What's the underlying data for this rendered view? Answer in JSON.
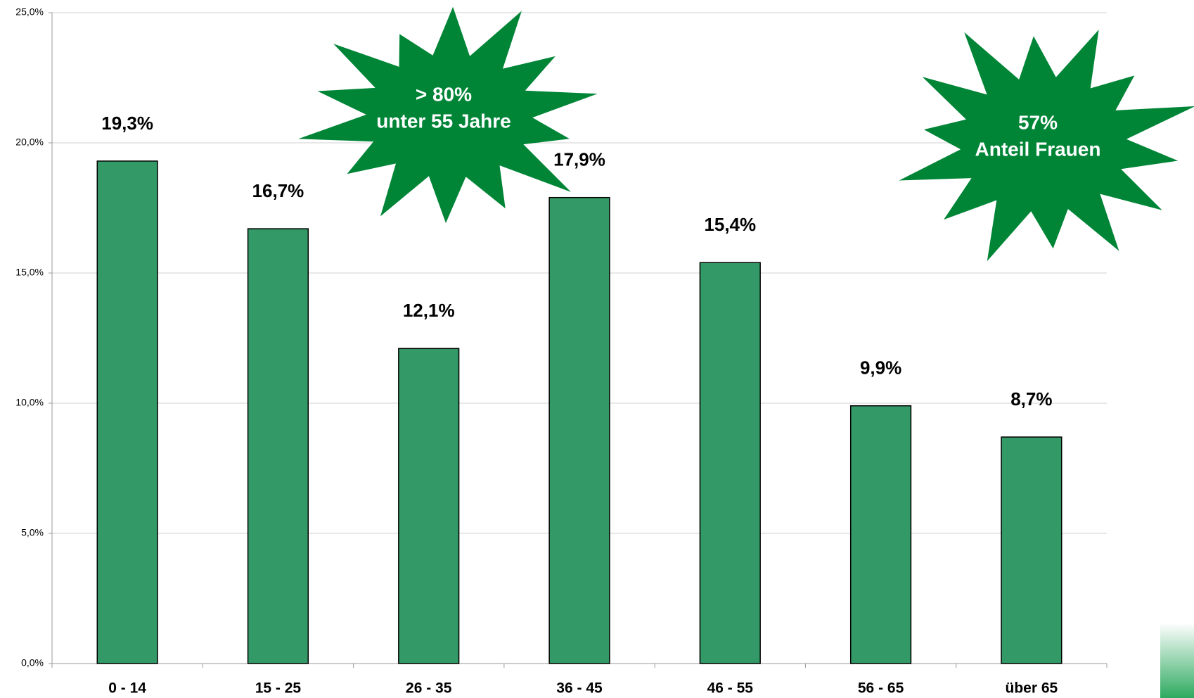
{
  "chart_data": {
    "type": "bar",
    "categories": [
      "0 - 14",
      "15 - 25",
      "26 - 35",
      "36 - 45",
      "46 - 55",
      "56 - 65",
      "über 65"
    ],
    "values": [
      19.3,
      16.7,
      12.1,
      17.9,
      15.4,
      9.9,
      8.7
    ],
    "value_labels": [
      "19,3%",
      "16,7%",
      "12,1%",
      "17,9%",
      "15,4%",
      "9,9%",
      "8,7%"
    ],
    "color": "#339966",
    "ylim": [
      0,
      25
    ],
    "yticks": [
      {
        "value": 0,
        "label": "0,0%"
      },
      {
        "value": 5,
        "label": "5,0%"
      },
      {
        "value": 10,
        "label": "10,0%"
      },
      {
        "value": 15,
        "label": "15,0%"
      },
      {
        "value": 20,
        "label": "20,0%"
      },
      {
        "value": 25,
        "label": "25,0%"
      }
    ],
    "grid": true,
    "annotations": [
      {
        "lines": [
          "> 80%",
          "unter 55 Jahre"
        ]
      },
      {
        "lines": [
          "57%",
          "Anteil Frauen"
        ]
      }
    ]
  }
}
